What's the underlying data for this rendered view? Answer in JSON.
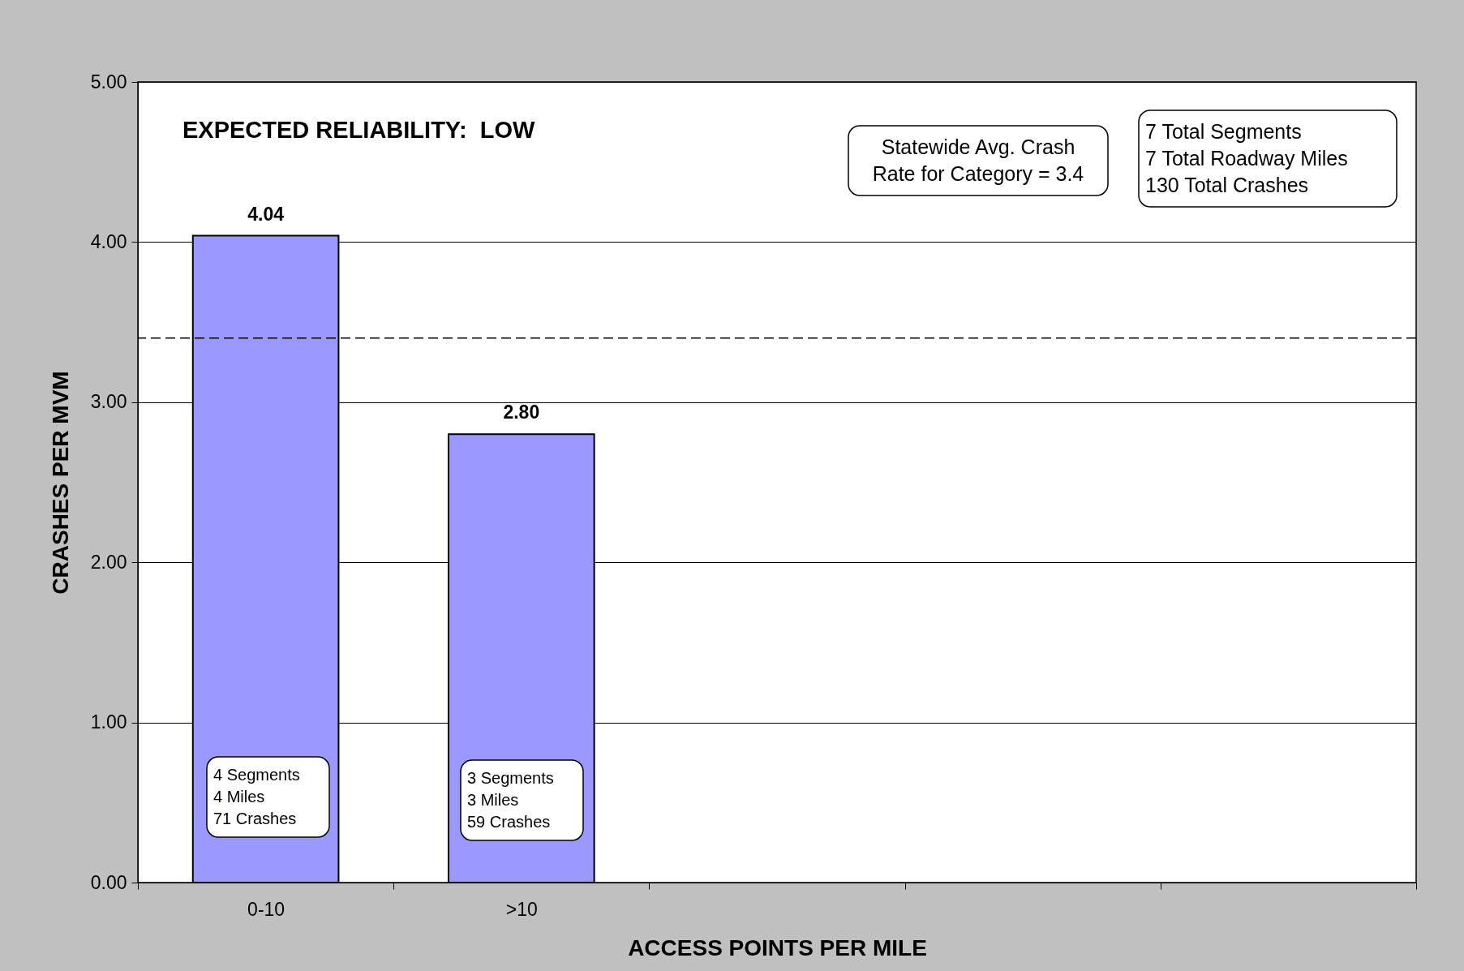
{
  "chart_data": {
    "type": "bar",
    "title": "EXPECTED RELIABILITY:  LOW",
    "xlabel": "ACCESS POINTS PER MILE",
    "ylabel": "CRASHES PER MVM",
    "categories": [
      "0-10",
      ">10",
      null,
      null,
      null
    ],
    "series": [
      {
        "color": "#9999ff",
        "values": [
          4.04,
          2.8,
          null,
          null,
          null
        ],
        "value_labels": [
          "4.04",
          "2.80",
          null,
          null,
          null
        ]
      }
    ],
    "ylim": [
      0,
      5
    ],
    "yticks": [
      {
        "value": 0,
        "label": "0.00"
      },
      {
        "value": 1,
        "label": "1.00"
      },
      {
        "value": 2,
        "label": "2.00"
      },
      {
        "value": 3,
        "label": "3.00"
      },
      {
        "value": 4,
        "label": "4.00"
      },
      {
        "value": 5,
        "label": "5.00"
      }
    ],
    "grid": "y",
    "ref_lines": [
      {
        "axis": "y",
        "value": 3.4,
        "color": "#000000",
        "line_style": "dashed"
      }
    ],
    "annotations": [
      "Statewide Avg. Crash\nRate for Category = 3.4",
      "7 Total Segments\n7 Total Roadway Miles\n130 Total Crashes",
      "4 Segments\n4 Miles\n71 Crashes",
      "3 Segments\n3 Miles\n59 Crashes"
    ]
  }
}
